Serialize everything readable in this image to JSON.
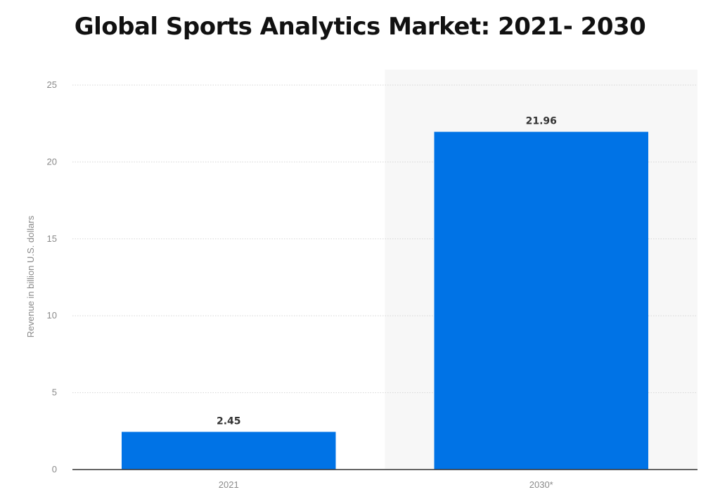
{
  "chart_data": {
    "type": "bar",
    "title": "Global Sports Analytics Market: 2021- 2030",
    "categories": [
      "2021",
      "2030*"
    ],
    "values": [
      2.45,
      21.96
    ],
    "value_labels": [
      "2.45",
      "21.96"
    ],
    "xlabel": "",
    "ylabel": "Revenue in billion U.S. dollars",
    "ylim": [
      0,
      25
    ],
    "yticks": [
      0,
      5,
      10,
      15,
      20,
      25
    ],
    "grid": true,
    "forecast_shading_category": "2030*",
    "bar_color": "#0073e6",
    "shade_color": "#f7f7f7",
    "grid_color": "#d6d6d6",
    "axis_color": "#333333"
  }
}
